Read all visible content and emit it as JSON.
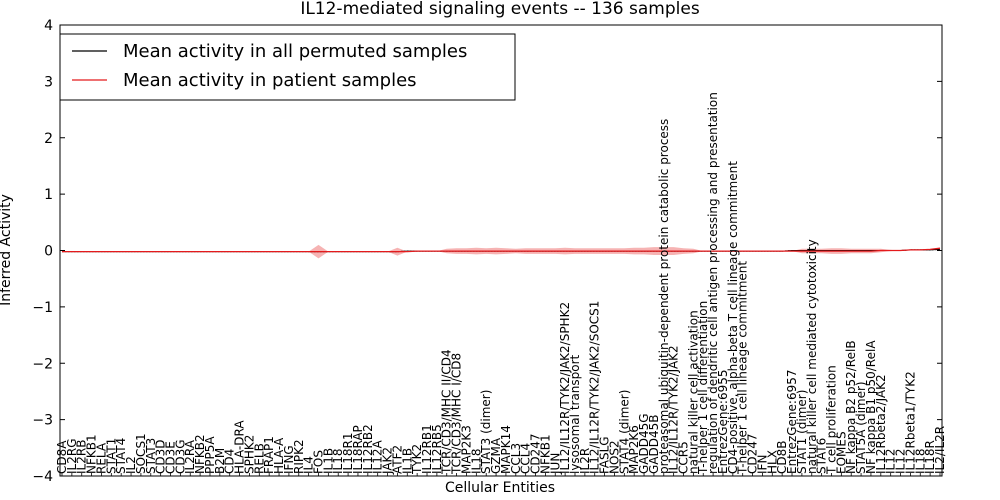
{
  "chart_data": {
    "type": "line",
    "title": "IL12-mediated signaling events -- 136 samples",
    "xlabel": "Cellular Entities",
    "ylabel": "Inferred Activity",
    "ylim": [
      -4,
      4
    ],
    "yticks": [
      -4,
      -3,
      -2,
      -1,
      0,
      1,
      2,
      3,
      4
    ],
    "legend_position": "top-left",
    "colors": {
      "permuted": "#000000",
      "patient": "#e41a1c",
      "band": "#f08080"
    },
    "categories": [
      "CD8A",
      "IL2RG",
      "IL2RB",
      "NFKB1",
      "RELA",
      "STAT1",
      "STAT4",
      "IL2",
      "SOCS1",
      "STAT3",
      "CD3D",
      "CD3E",
      "CD3G",
      "IL2RA",
      "NFKB2",
      "PPP5A",
      "B2M",
      "CD4",
      "HLA-DRA",
      "SPHK2",
      "RELB",
      "FRAP1",
      "HLA-A",
      "IFNG",
      "RIPK2",
      "IL4",
      "FOS",
      "IL1B",
      "IL18",
      "IL18R1",
      "IL18RAP",
      "IL12RB2",
      "IL12A",
      "JAK2",
      "ATF2",
      "IL1B",
      "TYK2",
      "IL12RB1",
      "IL12RB5",
      "TCR/CD3/MHC II/CD4",
      "TCR/CD3/MHC I/CD8",
      "MAP2K3",
      "IL18",
      "STAT3 (dimer)",
      "GZMA",
      "MAPK14",
      "CCL3",
      "CCL4",
      "CD247",
      "NFKB1",
      "JUN",
      "IL12/IL12R/TYK2/JAK2/SPHK2",
      "lysosomal transport",
      "IL2R",
      "IL12/IL12R/TYK2/JAK2/SOCS1",
      "FASLG",
      "NOS2",
      "STAT4 (dimer)",
      "MAP2K6",
      "GADD45G",
      "GADD45B",
      "proteasomal ubiquitin-dependent protein catabolic process",
      "IL12/IL12R/TYK2/JAK2",
      "CCR5",
      "natural killer cell activation",
      "T-helper 1 cell differentiation",
      "regulation of dendritic cell antigen processing and presentation",
      "EntrezGene:6955",
      "CD4-positive, alpha-beta T cell lineage commitment",
      "T-helper 1 cell lineage commitment",
      "CD247",
      "IFN",
      "HLX",
      "CD8B",
      "EntrezGene:6957",
      "STAT1 (dimer)",
      "natural killer cell mediated cytotoxicity",
      "STAT6",
      "T cell proliferation",
      "EOMES",
      "NF kappa B2 p52/RelB",
      "STAT5A (dimer)",
      "NF kappa B1 p50/RelA",
      "IL12Rbeta2/JAK2",
      "IL12",
      "IL12",
      "IL12Rbeta1/TYK2",
      "IL18",
      "IL18R",
      "IL2/IL2R"
    ],
    "series": [
      {
        "name": "Mean activity in all permuted samples",
        "values": [
          -0.02,
          -0.02,
          -0.02,
          -0.02,
          -0.02,
          -0.02,
          -0.02,
          -0.02,
          -0.02,
          -0.02,
          -0.02,
          -0.02,
          -0.02,
          -0.02,
          -0.02,
          -0.02,
          -0.02,
          -0.02,
          -0.02,
          -0.02,
          -0.02,
          -0.02,
          -0.02,
          -0.02,
          -0.02,
          -0.02,
          -0.02,
          -0.02,
          -0.02,
          -0.02,
          -0.02,
          -0.02,
          -0.02,
          -0.02,
          -0.02,
          -0.01,
          -0.01,
          -0.01,
          -0.01,
          -0.01,
          -0.01,
          -0.01,
          -0.01,
          -0.01,
          -0.01,
          -0.01,
          -0.01,
          -0.01,
          -0.01,
          -0.01,
          -0.01,
          -0.01,
          -0.01,
          -0.01,
          -0.01,
          -0.01,
          -0.01,
          -0.01,
          -0.01,
          -0.01,
          -0.01,
          -0.01,
          -0.01,
          -0.01,
          -0.01,
          -0.01,
          -0.01,
          -0.01,
          -0.01,
          -0.01,
          -0.01,
          -0.01,
          -0.01,
          -0.01,
          0,
          0,
          0,
          0,
          0,
          0,
          0,
          0,
          0,
          0,
          0,
          0,
          0.01,
          0.01,
          0.01,
          0.02
        ]
      },
      {
        "name": "Mean activity in patient samples",
        "values": [
          -0.02,
          -0.02,
          -0.02,
          -0.02,
          -0.02,
          -0.02,
          -0.02,
          -0.02,
          -0.02,
          -0.02,
          -0.02,
          -0.02,
          -0.02,
          -0.02,
          -0.02,
          -0.02,
          -0.02,
          -0.02,
          -0.02,
          -0.02,
          -0.02,
          -0.02,
          -0.02,
          -0.02,
          -0.02,
          -0.02,
          -0.02,
          -0.02,
          -0.02,
          -0.02,
          -0.02,
          -0.02,
          -0.02,
          -0.02,
          -0.02,
          -0.02,
          -0.01,
          -0.01,
          -0.01,
          -0.01,
          -0.01,
          -0.01,
          -0.01,
          -0.01,
          -0.01,
          -0.01,
          -0.01,
          -0.01,
          -0.01,
          -0.01,
          -0.01,
          -0.01,
          -0.01,
          -0.01,
          -0.01,
          -0.01,
          -0.01,
          -0.01,
          -0.01,
          -0.01,
          -0.01,
          -0.01,
          -0.01,
          -0.01,
          -0.01,
          -0.01,
          -0.01,
          -0.01,
          -0.01,
          -0.01,
          -0.01,
          -0.01,
          -0.01,
          -0.01,
          -0.01,
          -0.01,
          -0.01,
          -0.01,
          -0.01,
          -0.01,
          -0.01,
          -0.01,
          -0.01,
          0,
          0,
          0,
          0.01,
          0.01,
          0.02,
          0.04
        ]
      }
    ],
    "band_halfwidth": [
      0,
      0,
      0,
      0,
      0,
      0,
      0,
      0,
      0,
      0,
      0,
      0,
      0,
      0,
      0,
      0,
      0,
      0,
      0,
      0,
      0,
      0,
      0,
      0,
      0,
      0,
      0.12,
      0,
      0,
      0,
      0,
      0,
      0,
      0,
      0.07,
      0,
      0,
      0,
      0,
      0.04,
      0.05,
      0.05,
      0.06,
      0.05,
      0.06,
      0.05,
      0.04,
      0.05,
      0.05,
      0.05,
      0.05,
      0.06,
      0.05,
      0.05,
      0.05,
      0.05,
      0.05,
      0.05,
      0.06,
      0.06,
      0.07,
      0.07,
      0.07,
      0.05,
      0.04,
      0,
      0,
      0,
      0,
      0,
      0,
      0,
      0,
      0,
      0,
      0.04,
      0.04,
      0.04,
      0.05,
      0.05,
      0.04,
      0.04,
      0.04,
      0.03,
      0.01,
      0,
      0,
      0,
      0,
      0
    ]
  }
}
